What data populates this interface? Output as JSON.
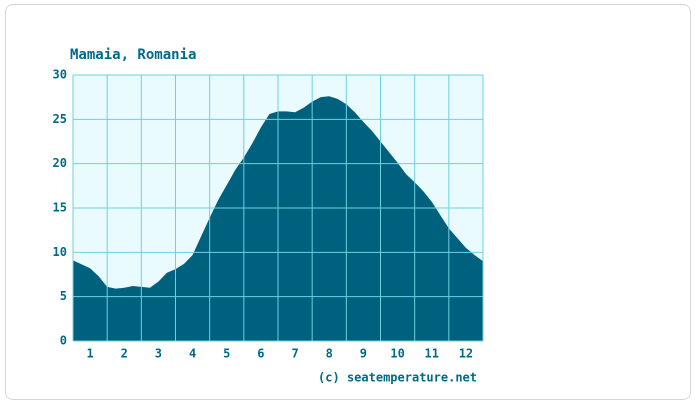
{
  "chart_data": {
    "type": "area",
    "title": "Mamaia, Romania",
    "credit": "(c) seatemperature.net",
    "x": [
      0.5,
      1,
      1.25,
      1.5,
      1.75,
      2,
      2.25,
      2.5,
      2.75,
      3,
      3.25,
      3.5,
      3.75,
      4,
      4.25,
      4.5,
      4.75,
      5,
      5.25,
      5.5,
      5.75,
      6,
      6.25,
      6.5,
      6.75,
      7,
      7.25,
      7.5,
      7.75,
      8,
      8.25,
      8.5,
      8.75,
      9,
      9.25,
      9.5,
      9.75,
      10,
      10.25,
      10.5,
      10.75,
      11,
      11.25,
      11.5,
      11.75,
      12,
      12.25,
      12.5
    ],
    "values": [
      9.1,
      8.2,
      7.3,
      6.1,
      5.9,
      6.0,
      6.2,
      6.1,
      6.0,
      6.7,
      7.7,
      8.1,
      8.7,
      9.7,
      11.8,
      13.9,
      15.9,
      17.6,
      19.3,
      20.7,
      22.3,
      24.1,
      25.6,
      25.9,
      25.9,
      25.8,
      26.3,
      27.0,
      27.5,
      27.6,
      27.3,
      26.7,
      25.8,
      24.7,
      23.7,
      22.5,
      21.3,
      20.1,
      18.8,
      17.9,
      16.9,
      15.7,
      14.2,
      12.7,
      11.6,
      10.5,
      9.7,
      9.0
    ],
    "color": "#00617f",
    "background": "#e9fbff",
    "grid_color": "#6fd0e0",
    "xlim": [
      0.5,
      12.5
    ],
    "xticks": [
      1,
      2,
      3,
      4,
      5,
      6,
      7,
      8,
      9,
      10,
      11,
      12
    ],
    "ylim": [
      0,
      30
    ],
    "yticks": [
      0,
      5,
      10,
      15,
      20,
      25,
      30
    ],
    "grid": true
  }
}
